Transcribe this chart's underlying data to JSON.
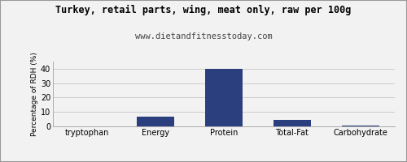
{
  "title": "Turkey, retail parts, wing, meat only, raw per 100g",
  "subtitle": "www.dietandfitnesstoday.com",
  "categories": [
    "tryptophan",
    "Energy",
    "Protein",
    "Total-Fat",
    "Carbohydrate"
  ],
  "values": [
    0.0,
    6.5,
    40.0,
    4.5,
    0.5
  ],
  "bar_color": "#2b3f7e",
  "ylabel": "Percentage of RDH (%)",
  "ylim": [
    0,
    45
  ],
  "yticks": [
    0,
    10,
    20,
    30,
    40
  ],
  "background_color": "#f2f2f2",
  "plot_bg_color": "#f2f2f2",
  "title_fontsize": 8.5,
  "subtitle_fontsize": 7.5,
  "ylabel_fontsize": 6.5,
  "xtick_fontsize": 7,
  "ytick_fontsize": 7,
  "grid_color": "#cccccc",
  "bar_width": 0.55
}
